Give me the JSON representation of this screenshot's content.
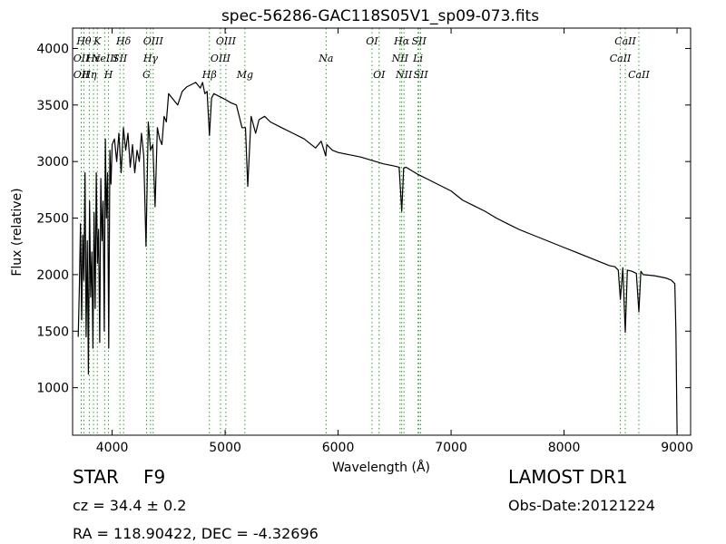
{
  "title": "spec-56286-GAC118S05V1_sp09-073.fits",
  "chart_data": {
    "type": "line",
    "title": "spec-56286-GAC118S05V1_sp09-073.fits",
    "xlabel": "Wavelength (Å)",
    "ylabel": "Flux (relative)",
    "xlim": [
      3650,
      9120
    ],
    "ylim": [
      580,
      4180
    ],
    "xticks": [
      4000,
      5000,
      6000,
      7000,
      8000,
      9000
    ],
    "yticks": [
      1000,
      1500,
      2000,
      2500,
      3000,
      3500,
      4000
    ],
    "grid": false,
    "series": [
      {
        "color": "#000000",
        "x": [
          3700,
          3710,
          3720,
          3730,
          3740,
          3750,
          3760,
          3770,
          3780,
          3790,
          3800,
          3810,
          3820,
          3830,
          3840,
          3850,
          3860,
          3870,
          3880,
          3890,
          3900,
          3910,
          3920,
          3930,
          3940,
          3950,
          3960,
          3970,
          3980,
          3990,
          4000,
          4020,
          4040,
          4060,
          4080,
          4100,
          4120,
          4140,
          4160,
          4180,
          4200,
          4220,
          4240,
          4260,
          4280,
          4300,
          4320,
          4340,
          4360,
          4380,
          4400,
          4420,
          4440,
          4460,
          4480,
          4500,
          4540,
          4580,
          4620,
          4660,
          4700,
          4740,
          4780,
          4800,
          4820,
          4840,
          4861,
          4880,
          4900,
          4940,
          4980,
          5000,
          5050,
          5100,
          5150,
          5180,
          5200,
          5230,
          5270,
          5300,
          5350,
          5400,
          5500,
          5600,
          5700,
          5800,
          5850,
          5890,
          5900,
          5950,
          6000,
          6100,
          6200,
          6300,
          6400,
          6500,
          6540,
          6563,
          6580,
          6600,
          6700,
          6800,
          6900,
          7000,
          7100,
          7200,
          7300,
          7400,
          7500,
          7600,
          7700,
          7800,
          7900,
          8000,
          8100,
          8200,
          8300,
          8400,
          8450,
          8480,
          8498,
          8520,
          8542,
          8560,
          8600,
          8640,
          8662,
          8680,
          8700,
          8800,
          8900,
          8950,
          8980,
          8990,
          9000
        ],
        "y": [
          1450,
          1900,
          2450,
          1600,
          2350,
          1950,
          2900,
          1450,
          2300,
          1120,
          2650,
          1800,
          2200,
          1350,
          2550,
          1700,
          2900,
          2100,
          2400,
          1400,
          2850,
          2300,
          2650,
          1500,
          3200,
          2500,
          2900,
          1350,
          3100,
          2800,
          3150,
          3200,
          3000,
          3250,
          2900,
          3300,
          3100,
          3250,
          2950,
          3150,
          2900,
          3100,
          3000,
          3250,
          3050,
          2250,
          3350,
          3100,
          3150,
          2600,
          3300,
          3200,
          3150,
          3400,
          3350,
          3600,
          3550,
          3500,
          3620,
          3660,
          3680,
          3700,
          3650,
          3700,
          3600,
          3620,
          3230,
          3560,
          3600,
          3580,
          3560,
          3550,
          3520,
          3500,
          3300,
          3300,
          2780,
          3400,
          3250,
          3370,
          3400,
          3350,
          3300,
          3250,
          3200,
          3120,
          3180,
          3050,
          3150,
          3100,
          3080,
          3060,
          3040,
          3010,
          2980,
          2960,
          2950,
          2560,
          2940,
          2950,
          2890,
          2840,
          2790,
          2740,
          2660,
          2610,
          2560,
          2500,
          2450,
          2400,
          2360,
          2320,
          2280,
          2240,
          2200,
          2160,
          2120,
          2080,
          2070,
          2040,
          1780,
          2060,
          1490,
          2040,
          2030,
          2010,
          1670,
          2030,
          2000,
          1990,
          1970,
          1950,
          1920,
          1500,
          600
        ]
      }
    ],
    "line_markers": [
      {
        "x": 3727,
        "label": "OII",
        "row": 2
      },
      {
        "x": 3727,
        "label": "OII",
        "row": 3
      },
      {
        "x": 3750,
        "label": "Hθ",
        "row": 1
      },
      {
        "x": 3798,
        "label": "Hη",
        "row": 3
      },
      {
        "x": 3835,
        "label": "Hε",
        "row": 2
      },
      {
        "x": 3869,
        "label": "K",
        "row": 1
      },
      {
        "x": 3934,
        "label": "NeIII",
        "row": 2
      },
      {
        "x": 3968,
        "label": "H",
        "row": 3
      },
      {
        "x": 4069,
        "label": "SII",
        "row": 2
      },
      {
        "x": 4101,
        "label": "Hδ",
        "row": 1
      },
      {
        "x": 4304,
        "label": "G",
        "row": 3
      },
      {
        "x": 4340,
        "label": "Hγ",
        "row": 2
      },
      {
        "x": 4363,
        "label": "OIII",
        "row": 1
      },
      {
        "x": 4861,
        "label": "Hβ",
        "row": 3
      },
      {
        "x": 4959,
        "label": "OIII",
        "row": 2
      },
      {
        "x": 5007,
        "label": "OIII",
        "row": 1
      },
      {
        "x": 5175,
        "label": "Mg",
        "row": 3
      },
      {
        "x": 5894,
        "label": "Na",
        "row": 2
      },
      {
        "x": 6300,
        "label": "OI",
        "row": 1
      },
      {
        "x": 6363,
        "label": "OI",
        "row": 3
      },
      {
        "x": 6548,
        "label": "NII",
        "row": 2
      },
      {
        "x": 6563,
        "label": "Hα",
        "row": 1
      },
      {
        "x": 6583,
        "label": "NII",
        "row": 3
      },
      {
        "x": 6707,
        "label": "Li",
        "row": 2
      },
      {
        "x": 6716,
        "label": "SII",
        "row": 1
      },
      {
        "x": 6731,
        "label": "SII",
        "row": 3
      },
      {
        "x": 8498,
        "label": "CaII",
        "row": 2
      },
      {
        "x": 8542,
        "label": "CaII",
        "row": 1
      },
      {
        "x": 8662,
        "label": "CaII",
        "row": 3
      }
    ]
  },
  "info": {
    "class": "STAR",
    "subclass": "F9",
    "survey": "LAMOST DR1",
    "cz": "cz = 34.4  ± 0.2",
    "obs_date": "Obs-Date:20121224",
    "radec": "RA = 118.90422, DEC = -4.32696"
  },
  "colors": {
    "spectrum": "#000000",
    "line_marker": "#2ca02c",
    "axes": "#000000"
  }
}
